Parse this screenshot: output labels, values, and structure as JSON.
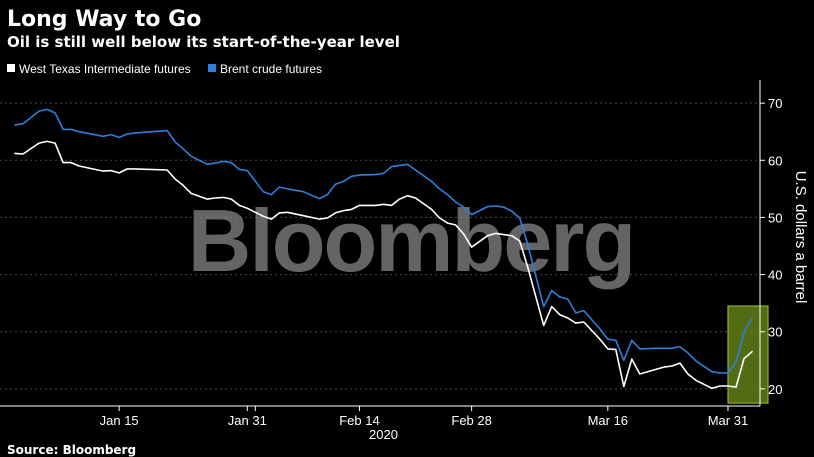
{
  "chart_data": {
    "type": "line",
    "title": "Long Way to Go",
    "subtitle": "Oil is still well below its start-of-the-year level",
    "ylabel": "U.S. dollars a barrel",
    "xlabel": "2020",
    "ylim": [
      17,
      73
    ],
    "yticks": [
      20,
      30,
      40,
      50,
      60,
      70
    ],
    "x_start": "2020-01-01",
    "x_end": "2020-04-03",
    "xticks": [
      {
        "date": "2020-01-15",
        "label": "Jan 15"
      },
      {
        "date": "2020-01-31",
        "label": "Jan 31"
      },
      {
        "date": "2020-02-14",
        "label": "Feb 14"
      },
      {
        "date": "2020-02-28",
        "label": "Feb 28"
      },
      {
        "date": "2020-03-16",
        "label": "Mar 16"
      },
      {
        "date": "2020-03-31",
        "label": "Mar 31"
      }
    ],
    "year_label": "2020",
    "grid": true,
    "legend_position": "top-left",
    "series": [
      {
        "name": "West Texas Intermediate futures",
        "color": "#ffffff",
        "points": [
          [
            "2020-01-02",
            61.2
          ],
          [
            "2020-01-03",
            61.1
          ],
          [
            "2020-01-05",
            63.0
          ],
          [
            "2020-01-06",
            63.3
          ],
          [
            "2020-01-07",
            63.0
          ],
          [
            "2020-01-08",
            59.6
          ],
          [
            "2020-01-09",
            59.6
          ],
          [
            "2020-01-10",
            59.0
          ],
          [
            "2020-01-13",
            58.1
          ],
          [
            "2020-01-14",
            58.2
          ],
          [
            "2020-01-15",
            57.8
          ],
          [
            "2020-01-16",
            58.5
          ],
          [
            "2020-01-17",
            58.5
          ],
          [
            "2020-01-21",
            58.3
          ],
          [
            "2020-01-22",
            56.7
          ],
          [
            "2020-01-23",
            55.6
          ],
          [
            "2020-01-24",
            54.2
          ],
          [
            "2020-01-26",
            53.2
          ],
          [
            "2020-01-27",
            53.4
          ],
          [
            "2020-01-28",
            53.5
          ],
          [
            "2020-01-29",
            53.2
          ],
          [
            "2020-01-30",
            52.1
          ],
          [
            "2020-01-31",
            51.6
          ],
          [
            "2020-02-02",
            50.2
          ],
          [
            "2020-02-03",
            49.7
          ],
          [
            "2020-02-04",
            50.8
          ],
          [
            "2020-02-05",
            50.9
          ],
          [
            "2020-02-07",
            50.3
          ],
          [
            "2020-02-09",
            49.7
          ],
          [
            "2020-02-10",
            49.9
          ],
          [
            "2020-02-11",
            50.8
          ],
          [
            "2020-02-12",
            51.2
          ],
          [
            "2020-02-13",
            51.4
          ],
          [
            "2020-02-14",
            52.1
          ],
          [
            "2020-02-16",
            52.1
          ],
          [
            "2020-02-17",
            52.3
          ],
          [
            "2020-02-18",
            52.1
          ],
          [
            "2020-02-19",
            53.2
          ],
          [
            "2020-02-20",
            53.8
          ],
          [
            "2020-02-21",
            53.4
          ],
          [
            "2020-02-23",
            51.4
          ],
          [
            "2020-02-24",
            49.9
          ],
          [
            "2020-02-25",
            49.0
          ],
          [
            "2020-02-26",
            48.7
          ],
          [
            "2020-02-27",
            47.1
          ],
          [
            "2020-02-28",
            44.8
          ],
          [
            "2020-03-01",
            46.8
          ],
          [
            "2020-03-02",
            47.2
          ],
          [
            "2020-03-03",
            47.0
          ],
          [
            "2020-03-04",
            46.8
          ],
          [
            "2020-03-05",
            45.9
          ],
          [
            "2020-03-06",
            41.3
          ],
          [
            "2020-03-08",
            31.1
          ],
          [
            "2020-03-09",
            34.4
          ],
          [
            "2020-03-10",
            33.0
          ],
          [
            "2020-03-11",
            32.4
          ],
          [
            "2020-03-12",
            31.5
          ],
          [
            "2020-03-13",
            31.7
          ],
          [
            "2020-03-15",
            28.7
          ],
          [
            "2020-03-16",
            27.0
          ],
          [
            "2020-03-17",
            26.9
          ],
          [
            "2020-03-18",
            20.4
          ],
          [
            "2020-03-19",
            25.2
          ],
          [
            "2020-03-20",
            22.6
          ],
          [
            "2020-03-22",
            23.4
          ],
          [
            "2020-03-23",
            23.8
          ],
          [
            "2020-03-24",
            24.0
          ],
          [
            "2020-03-25",
            24.5
          ],
          [
            "2020-03-26",
            22.6
          ],
          [
            "2020-03-27",
            21.5
          ],
          [
            "2020-03-29",
            20.1
          ],
          [
            "2020-03-30",
            20.5
          ],
          [
            "2020-03-31",
            20.5
          ],
          [
            "2020-04-01",
            20.3
          ],
          [
            "2020-04-02",
            25.3
          ],
          [
            "2020-04-03",
            26.5
          ]
        ]
      },
      {
        "name": "Brent crude futures",
        "color": "#2c7fdd",
        "points": [
          [
            "2020-01-02",
            66.2
          ],
          [
            "2020-01-03",
            66.4
          ],
          [
            "2020-01-05",
            68.6
          ],
          [
            "2020-01-06",
            68.9
          ],
          [
            "2020-01-07",
            68.3
          ],
          [
            "2020-01-08",
            65.4
          ],
          [
            "2020-01-09",
            65.4
          ],
          [
            "2020-01-10",
            65.0
          ],
          [
            "2020-01-13",
            64.2
          ],
          [
            "2020-01-14",
            64.5
          ],
          [
            "2020-01-15",
            64.0
          ],
          [
            "2020-01-16",
            64.6
          ],
          [
            "2020-01-17",
            64.8
          ],
          [
            "2020-01-21",
            65.2
          ],
          [
            "2020-01-22",
            63.2
          ],
          [
            "2020-01-23",
            62.0
          ],
          [
            "2020-01-24",
            60.7
          ],
          [
            "2020-01-26",
            59.3
          ],
          [
            "2020-01-27",
            59.5
          ],
          [
            "2020-01-28",
            59.8
          ],
          [
            "2020-01-29",
            59.6
          ],
          [
            "2020-01-30",
            58.4
          ],
          [
            "2020-01-31",
            58.2
          ],
          [
            "2020-02-02",
            54.5
          ],
          [
            "2020-02-03",
            54.0
          ],
          [
            "2020-02-04",
            55.3
          ],
          [
            "2020-02-05",
            55.0
          ],
          [
            "2020-02-07",
            54.5
          ],
          [
            "2020-02-09",
            53.3
          ],
          [
            "2020-02-10",
            54.0
          ],
          [
            "2020-02-11",
            55.8
          ],
          [
            "2020-02-12",
            56.3
          ],
          [
            "2020-02-13",
            57.2
          ],
          [
            "2020-02-14",
            57.4
          ],
          [
            "2020-02-16",
            57.5
          ],
          [
            "2020-02-17",
            57.7
          ],
          [
            "2020-02-18",
            58.9
          ],
          [
            "2020-02-19",
            59.1
          ],
          [
            "2020-02-20",
            59.3
          ],
          [
            "2020-02-21",
            58.3
          ],
          [
            "2020-02-23",
            56.3
          ],
          [
            "2020-02-24",
            55.0
          ],
          [
            "2020-02-25",
            54.0
          ],
          [
            "2020-02-26",
            52.7
          ],
          [
            "2020-02-27",
            51.8
          ],
          [
            "2020-02-28",
            50.5
          ],
          [
            "2020-03-01",
            51.9
          ],
          [
            "2020-03-02",
            52.0
          ],
          [
            "2020-03-03",
            51.8
          ],
          [
            "2020-03-04",
            51.1
          ],
          [
            "2020-03-05",
            49.9
          ],
          [
            "2020-03-06",
            45.3
          ],
          [
            "2020-03-08",
            34.4
          ],
          [
            "2020-03-09",
            37.2
          ],
          [
            "2020-03-10",
            36.1
          ],
          [
            "2020-03-11",
            35.7
          ],
          [
            "2020-03-12",
            33.3
          ],
          [
            "2020-03-13",
            33.7
          ],
          [
            "2020-03-15",
            30.5
          ],
          [
            "2020-03-16",
            28.7
          ],
          [
            "2020-03-17",
            28.5
          ],
          [
            "2020-03-18",
            25.0
          ],
          [
            "2020-03-19",
            28.5
          ],
          [
            "2020-03-20",
            27.0
          ],
          [
            "2020-03-22",
            27.1
          ],
          [
            "2020-03-23",
            27.1
          ],
          [
            "2020-03-24",
            27.1
          ],
          [
            "2020-03-25",
            27.4
          ],
          [
            "2020-03-26",
            26.3
          ],
          [
            "2020-03-27",
            24.9
          ],
          [
            "2020-03-29",
            23.0
          ],
          [
            "2020-03-30",
            22.8
          ],
          [
            "2020-03-31",
            22.8
          ],
          [
            "2020-04-01",
            24.7
          ],
          [
            "2020-04-02",
            29.9
          ],
          [
            "2020-04-03",
            32.3
          ]
        ]
      }
    ],
    "highlight": {
      "x_from": "2020-03-31",
      "x_to": "2020-04-05",
      "y_from": 17.5,
      "y_to": 34.5,
      "fill": "#6a8a1a",
      "stroke": "#a3c233"
    },
    "watermark": "Bloomberg",
    "source": "Source: Bloomberg"
  }
}
